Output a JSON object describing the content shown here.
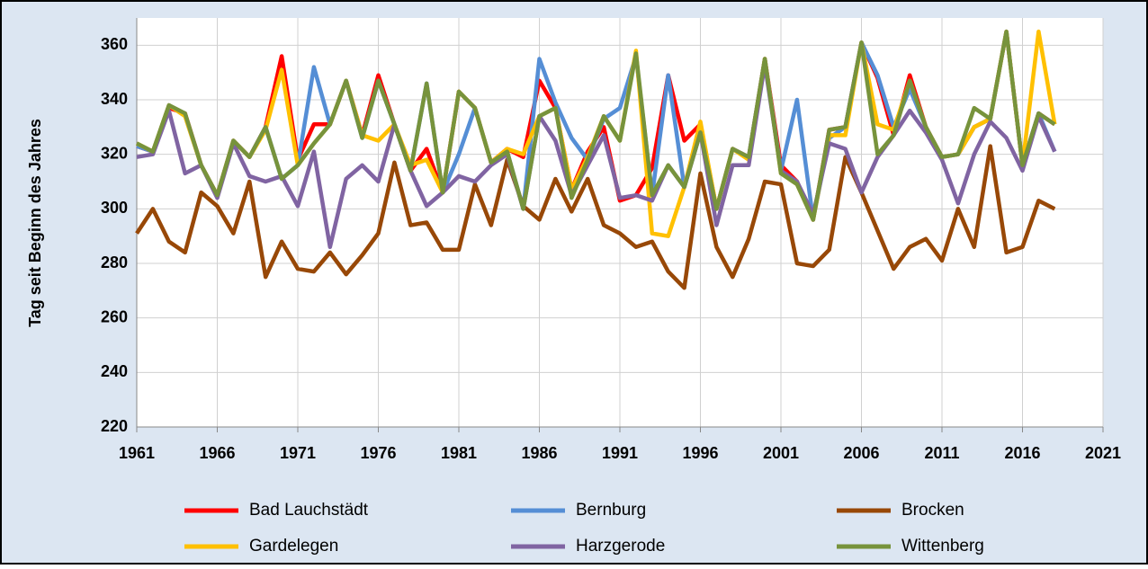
{
  "chart_data": {
    "type": "line",
    "y_label": "Tag seit Beginn des Jahres",
    "x": [
      1961,
      1962,
      1963,
      1964,
      1965,
      1966,
      1967,
      1968,
      1969,
      1970,
      1971,
      1972,
      1973,
      1974,
      1975,
      1976,
      1977,
      1978,
      1979,
      1980,
      1981,
      1982,
      1983,
      1984,
      1985,
      1986,
      1987,
      1988,
      1989,
      1990,
      1991,
      1992,
      1993,
      1994,
      1995,
      1996,
      1997,
      1998,
      1999,
      2000,
      2001,
      2002,
      2003,
      2004,
      2005,
      2006,
      2007,
      2008,
      2009,
      2010,
      2011,
      2012,
      2013,
      2014,
      2015,
      2016,
      2017,
      2018
    ],
    "xlim": [
      1961,
      2021
    ],
    "xticks": [
      1961,
      1966,
      1971,
      1976,
      1981,
      1986,
      1991,
      1996,
      2001,
      2006,
      2011,
      2016,
      2021
    ],
    "ylim": [
      220,
      370
    ],
    "yticks": [
      220,
      240,
      260,
      280,
      300,
      320,
      340,
      360
    ],
    "grid": true,
    "legend": "bottom",
    "series": [
      {
        "name": "Bad Lauchstädt",
        "color": "#ff0000",
        "values": [
          323,
          321,
          337,
          335,
          316,
          305,
          325,
          319,
          330,
          356,
          318,
          331,
          331,
          347,
          327,
          349,
          331,
          314,
          322,
          306,
          343,
          337,
          317,
          322,
          319,
          347,
          337,
          307,
          321,
          330,
          303,
          305,
          315,
          349,
          325,
          331,
          300,
          322,
          319,
          355,
          316,
          310,
          296,
          329,
          330,
          361,
          348,
          327,
          349,
          330,
          319,
          320,
          330,
          333,
          365,
          316,
          335,
          331
        ]
      },
      {
        "name": "Bernburg",
        "color": "#558ed5",
        "values": [
          323,
          321,
          338,
          334,
          316,
          305,
          325,
          319,
          330,
          311,
          316,
          352,
          331,
          347,
          326,
          347,
          331,
          314,
          346,
          306,
          320,
          337,
          317,
          321,
          300,
          355,
          339,
          326,
          318,
          333,
          337,
          356,
          305,
          349,
          308,
          328,
          300,
          322,
          319,
          355,
          314,
          340,
          296,
          326,
          330,
          361,
          349,
          330,
          344,
          330,
          319,
          320,
          330,
          333,
          365,
          316,
          335,
          321
        ]
      },
      {
        "name": "Brocken",
        "color": "#984807",
        "values": [
          291,
          300,
          288,
          284,
          306,
          301,
          291,
          310,
          275,
          288,
          278,
          277,
          284,
          276,
          283,
          291,
          317,
          294,
          295,
          285,
          285,
          309,
          294,
          318,
          301,
          296,
          311,
          299,
          311,
          294,
          291,
          286,
          288,
          277,
          271,
          313,
          286,
          275,
          289,
          310,
          309,
          280,
          279,
          285,
          319,
          306,
          292,
          278,
          286,
          289,
          281,
          300,
          286,
          323,
          284,
          286,
          303,
          300
        ]
      },
      {
        "name": "Gardelegen",
        "color": "#ffc000",
        "values": [
          324,
          321,
          338,
          334,
          316,
          305,
          325,
          319,
          329,
          351,
          316,
          324,
          331,
          347,
          327,
          325,
          331,
          316,
          318,
          306,
          343,
          337,
          317,
          322,
          320,
          334,
          337,
          307,
          319,
          334,
          325,
          358,
          291,
          290,
          308,
          332,
          300,
          322,
          318,
          355,
          313,
          309,
          296,
          327,
          327,
          361,
          331,
          329,
          347,
          330,
          319,
          320,
          330,
          333,
          365,
          316,
          365,
          331
        ]
      },
      {
        "name": "Harzgerode",
        "color": "#8064a2",
        "values": [
          319,
          320,
          336,
          313,
          316,
          304,
          324,
          312,
          310,
          312,
          301,
          321,
          286,
          311,
          316,
          310,
          331,
          314,
          301,
          306,
          312,
          310,
          316,
          320,
          300,
          334,
          325,
          305,
          316,
          327,
          304,
          305,
          303,
          316,
          308,
          328,
          294,
          316,
          316,
          353,
          314,
          310,
          298,
          324,
          322,
          306,
          319,
          327,
          336,
          328,
          318,
          302,
          320,
          332,
          326,
          314,
          334,
          321
        ]
      },
      {
        "name": "Wittenberg",
        "color": "#77933c",
        "values": [
          324,
          321,
          338,
          335,
          316,
          305,
          325,
          319,
          330,
          311,
          316,
          324,
          331,
          347,
          326,
          347,
          331,
          314,
          346,
          306,
          343,
          337,
          317,
          321,
          300,
          334,
          337,
          304,
          318,
          334,
          325,
          357,
          305,
          316,
          308,
          328,
          300,
          322,
          319,
          355,
          313,
          309,
          296,
          329,
          330,
          361,
          320,
          327,
          347,
          330,
          319,
          320,
          337,
          333,
          365,
          316,
          335,
          331
        ]
      }
    ]
  }
}
